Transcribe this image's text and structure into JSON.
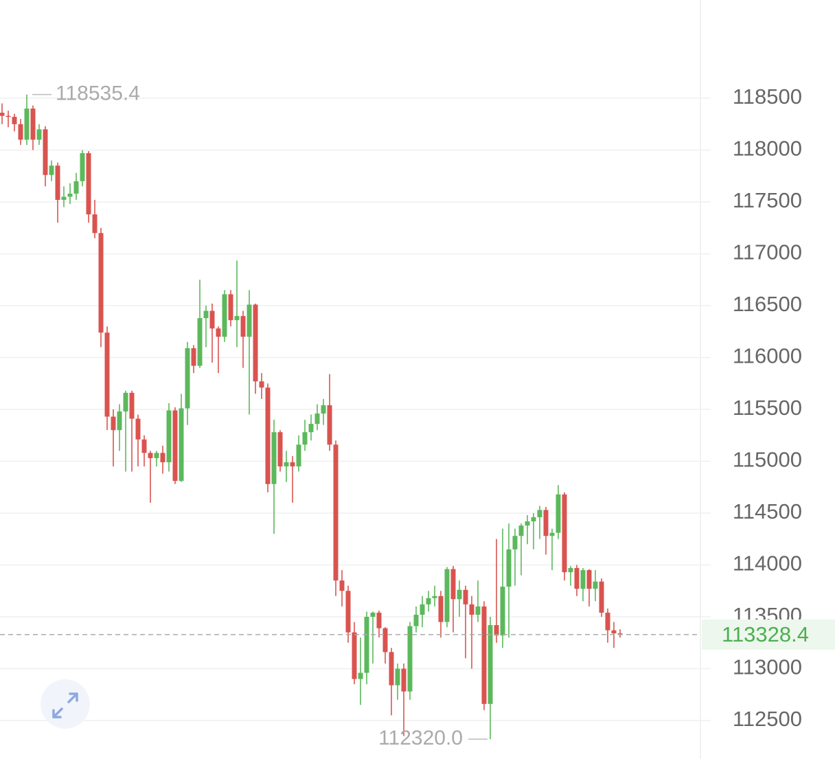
{
  "chart_data": {
    "type": "candlestick",
    "ylim": [
      112129,
      119447
    ],
    "yticks": [
      112500,
      113000,
      113500,
      114000,
      114500,
      115000,
      115500,
      116000,
      116500,
      117000,
      117500,
      118000,
      118500
    ],
    "grid": true,
    "up_color": "#5cb85c",
    "down_color": "#d9534f",
    "max_label": 118535.4,
    "min_label": {
      "value": 112320,
      "label": "112320.0"
    },
    "last_price": 113328.4,
    "ohlc": [
      [
        118360,
        118450,
        118250,
        118330
      ],
      [
        118330,
        118380,
        118220,
        118320
      ],
      [
        118320,
        118350,
        118180,
        118250
      ],
      [
        118250,
        118300,
        118050,
        118100
      ],
      [
        118100,
        118535.4,
        118050,
        118400
      ],
      [
        118400,
        118430,
        118000,
        118100
      ],
      [
        118100,
        118250,
        118050,
        118200
      ],
      [
        118200,
        118230,
        117650,
        117760
      ],
      [
        117760,
        117900,
        117700,
        117850
      ],
      [
        117850,
        117880,
        117300,
        117520
      ],
      [
        117520,
        117650,
        117450,
        117550
      ],
      [
        117550,
        117680,
        117480,
        117580
      ],
      [
        117580,
        117780,
        117520,
        117700
      ],
      [
        117700,
        118000,
        117650,
        117970
      ],
      [
        117970,
        117990,
        117300,
        117380
      ],
      [
        117380,
        117520,
        117150,
        117200
      ],
      [
        117200,
        117250,
        116100,
        116240
      ],
      [
        116240,
        116300,
        115300,
        115430
      ],
      [
        115430,
        115500,
        114950,
        115300
      ],
      [
        115300,
        115550,
        115100,
        115480
      ],
      [
        115480,
        115680,
        114900,
        115660
      ],
      [
        115660,
        115680,
        114900,
        115410
      ],
      [
        115410,
        115450,
        114950,
        115210
      ],
      [
        115210,
        115250,
        114950,
        115080
      ],
      [
        115080,
        115100,
        114600,
        115030
      ],
      [
        115030,
        115100,
        114950,
        115080
      ],
      [
        115080,
        115150,
        114880,
        114990
      ],
      [
        114990,
        115560,
        114900,
        115490
      ],
      [
        115490,
        115520,
        114780,
        114810
      ],
      [
        114810,
        115650,
        114800,
        115510
      ],
      [
        115510,
        116150,
        115350,
        116090
      ],
      [
        116090,
        116120,
        115850,
        115920
      ],
      [
        115920,
        116750,
        115900,
        116380
      ],
      [
        116380,
        116500,
        116100,
        116450
      ],
      [
        116450,
        116520,
        115950,
        116280
      ],
      [
        116280,
        116300,
        115850,
        116200
      ],
      [
        116200,
        116650,
        116150,
        116610
      ],
      [
        116610,
        116650,
        116300,
        116360
      ],
      [
        116360,
        116935,
        116100,
        116400
      ],
      [
        116400,
        116450,
        115900,
        116200
      ],
      [
        116200,
        116650,
        115450,
        116510
      ],
      [
        116510,
        116520,
        115650,
        115770
      ],
      [
        115770,
        115850,
        115600,
        115710
      ],
      [
        115710,
        115750,
        114700,
        114780
      ],
      [
        114780,
        115400,
        114300,
        115280
      ],
      [
        115280,
        115300,
        114900,
        114950
      ],
      [
        114950,
        115100,
        114800,
        114990
      ],
      [
        114990,
        115050,
        114600,
        114950
      ],
      [
        114950,
        115250,
        114900,
        115160
      ],
      [
        115160,
        115400,
        115100,
        115280
      ],
      [
        115280,
        115450,
        115200,
        115360
      ],
      [
        115360,
        115550,
        115300,
        115460
      ],
      [
        115460,
        115600,
        115350,
        115540
      ],
      [
        115540,
        115840,
        115100,
        115160
      ],
      [
        115160,
        115200,
        113700,
        113850
      ],
      [
        113850,
        113950,
        113600,
        113750
      ],
      [
        113750,
        113800,
        113250,
        113350
      ],
      [
        113350,
        113450,
        112850,
        112900
      ],
      [
        112900,
        113300,
        112650,
        112960
      ],
      [
        112960,
        113550,
        112850,
        113500
      ],
      [
        113500,
        113550,
        113050,
        113540
      ],
      [
        113540,
        113560,
        113300,
        113390
      ],
      [
        113390,
        113400,
        113050,
        113160
      ],
      [
        113160,
        113200,
        112550,
        112840
      ],
      [
        112840,
        113050,
        112700,
        113000
      ],
      [
        113000,
        113050,
        112350,
        112780
      ],
      [
        112780,
        113450,
        112700,
        113410
      ],
      [
        113410,
        113600,
        113350,
        113520
      ],
      [
        113520,
        113700,
        113400,
        113620
      ],
      [
        113620,
        113750,
        113550,
        113680
      ],
      [
        113680,
        113800,
        113600,
        113700
      ],
      [
        113700,
        113750,
        113300,
        113450
      ],
      [
        113450,
        113980,
        113400,
        113960
      ],
      [
        113960,
        113990,
        113350,
        113670
      ],
      [
        113670,
        113850,
        113500,
        113760
      ],
      [
        113760,
        113800,
        113100,
        113620
      ],
      [
        113620,
        113700,
        113000,
        113520
      ],
      [
        113520,
        113850,
        113450,
        113600
      ],
      [
        113600,
        113650,
        112600,
        112660
      ],
      [
        112660,
        113500,
        112320,
        113420
      ],
      [
        113420,
        114250,
        113250,
        113320
      ],
      [
        113320,
        114350,
        113200,
        113790
      ],
      [
        113790,
        114400,
        113300,
        114150
      ],
      [
        114150,
        114350,
        113800,
        114280
      ],
      [
        114280,
        114400,
        113900,
        114380
      ],
      [
        114380,
        114480,
        114200,
        114420
      ],
      [
        114420,
        114500,
        114150,
        114460
      ],
      [
        114460,
        114570,
        114250,
        114530
      ],
      [
        114530,
        114560,
        114100,
        114280
      ],
      [
        114280,
        114350,
        113950,
        114310
      ],
      [
        114310,
        114770,
        114250,
        114680
      ],
      [
        114680,
        114700,
        113850,
        113930
      ],
      [
        113930,
        113990,
        113800,
        113970
      ],
      [
        113970,
        114000,
        113700,
        113770
      ],
      [
        113770,
        113970,
        113650,
        113950
      ],
      [
        113950,
        113960,
        113600,
        113770
      ],
      [
        113770,
        113950,
        113650,
        113840
      ],
      [
        113840,
        113870,
        113500,
        113540
      ],
      [
        113540,
        113580,
        113250,
        113370
      ],
      [
        113370,
        113450,
        113200,
        113340
      ],
      [
        113340,
        113380,
        113300,
        113328.4
      ]
    ]
  }
}
